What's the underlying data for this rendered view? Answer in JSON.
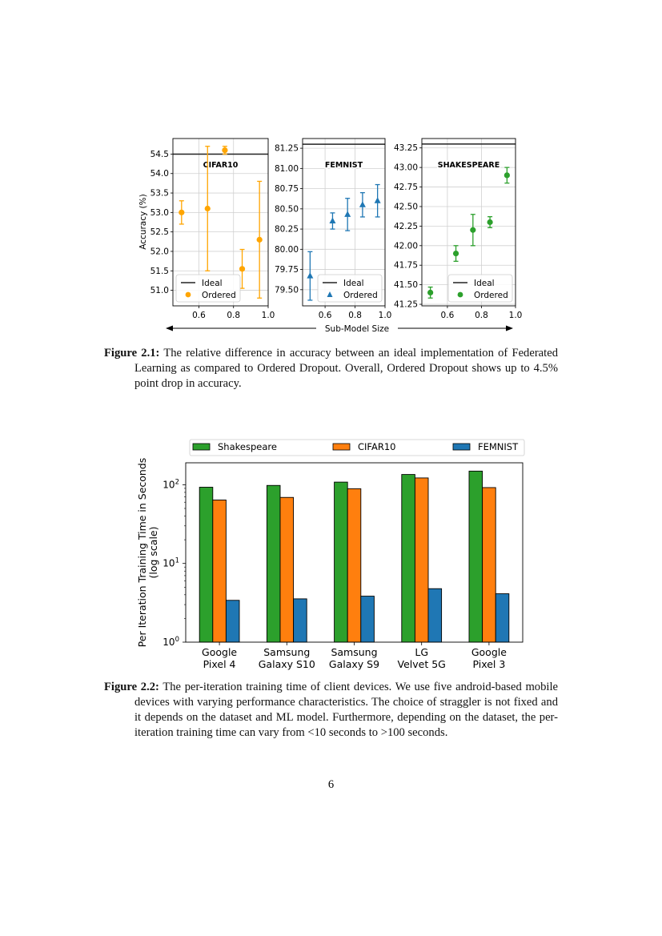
{
  "chart_data": [
    {
      "type": "scatter",
      "title": "CIFAR10",
      "xlabel": "Sub-Model Size",
      "ylabel": "Accuracy (%)",
      "xlim": [
        0.45,
        1.0
      ],
      "ylim": [
        50.6,
        54.9
      ],
      "xticks": [
        "0.6",
        "0.8",
        "1.0"
      ],
      "yticks": [
        "51.0",
        "51.5",
        "52.0",
        "52.5",
        "53.0",
        "53.5",
        "54.0",
        "54.5"
      ],
      "grid": true,
      "legend": {
        "placement": "lower-left",
        "entries": [
          "Ideal",
          "Ordered"
        ]
      },
      "ideal": 54.5,
      "color": "#FFA500",
      "marker": "circle",
      "x": [
        0.5,
        0.65,
        0.75,
        0.85,
        0.95
      ],
      "y": [
        53.0,
        53.1,
        54.6,
        51.55,
        52.3
      ],
      "err": [
        0.3,
        1.6,
        0.1,
        0.5,
        1.5
      ]
    },
    {
      "type": "scatter",
      "title": "FEMNIST",
      "xlim": [
        0.45,
        1.0
      ],
      "ylim": [
        79.3,
        81.37
      ],
      "xticks": [
        "0.6",
        "0.8",
        "1.0"
      ],
      "yticks": [
        "79.50",
        "79.75",
        "80.00",
        "80.25",
        "80.50",
        "80.75",
        "81.00",
        "81.25"
      ],
      "grid": true,
      "legend": {
        "placement": "lower-right",
        "entries": [
          "Ideal",
          "Ordered"
        ]
      },
      "ideal": 81.3,
      "color": "#1f77b4",
      "marker": "triangle",
      "x": [
        0.5,
        0.65,
        0.75,
        0.85,
        0.95
      ],
      "y": [
        79.67,
        80.35,
        80.43,
        80.55,
        80.6
      ],
      "err": [
        0.3,
        0.1,
        0.2,
        0.15,
        0.2
      ]
    },
    {
      "type": "scatter",
      "title": "SHAKESPEARE",
      "xlim": [
        0.45,
        1.0
      ],
      "ylim": [
        41.23,
        43.37
      ],
      "xticks": [
        "0.6",
        "0.8",
        "1.0"
      ],
      "yticks": [
        "41.25",
        "41.50",
        "41.75",
        "42.00",
        "42.25",
        "42.50",
        "42.75",
        "43.00",
        "43.25"
      ],
      "grid": true,
      "legend": {
        "placement": "lower-right",
        "entries": [
          "Ideal",
          "Ordered"
        ]
      },
      "ideal": 43.3,
      "color": "#2ca02c",
      "marker": "circle",
      "x": [
        0.5,
        0.65,
        0.75,
        0.85,
        0.95
      ],
      "y": [
        41.4,
        41.9,
        42.2,
        42.3,
        42.9
      ],
      "err": [
        0.07,
        0.1,
        0.2,
        0.07,
        0.1
      ]
    },
    {
      "type": "bar",
      "ylabel": "Per Iteration Training Time in Seconds\n(log scale)",
      "yscale": "log",
      "ylim": [
        1,
        190
      ],
      "yticks": [
        "10^0",
        "10^1",
        "10^2"
      ],
      "grid": false,
      "legend": {
        "placement": "top"
      },
      "categories": [
        "Google\nPixel 4",
        "Samsung\nGalaxy S10",
        "Samsung\nGalaxy S9",
        "LG\nVelvet 5G",
        "Google\nPixel 3"
      ],
      "series": [
        {
          "name": "Shakespeare",
          "color": "#2ca02c",
          "values": [
            93,
            98,
            108,
            135,
            149
          ]
        },
        {
          "name": "CIFAR10",
          "color": "#ff7f0e",
          "values": [
            64,
            69,
            89,
            122,
            92
          ]
        },
        {
          "name": "FEMNIST",
          "color": "#1f77b4",
          "values": [
            3.4,
            3.55,
            3.84,
            4.78,
            4.12
          ]
        }
      ]
    }
  ],
  "captions": {
    "fig1_label": "Figure 2.1:",
    "fig1_text": "The relative difference in accuracy between an ideal implementation of Federated Learning as compared to Ordered Dropout. Overall, Ordered Dropout shows up to 4.5% point drop in accuracy.",
    "fig2_label": "Figure 2.2:",
    "fig2_text": "The per-iteration training time of client devices. We use five android-based mobile devices with varying performance characteristics. The choice of straggler is not fixed and it depends on the dataset and ML model. Furthermore, depending on the dataset, the per-iteration training time can vary from <10 seconds to >100 seconds."
  },
  "page_number": "6"
}
